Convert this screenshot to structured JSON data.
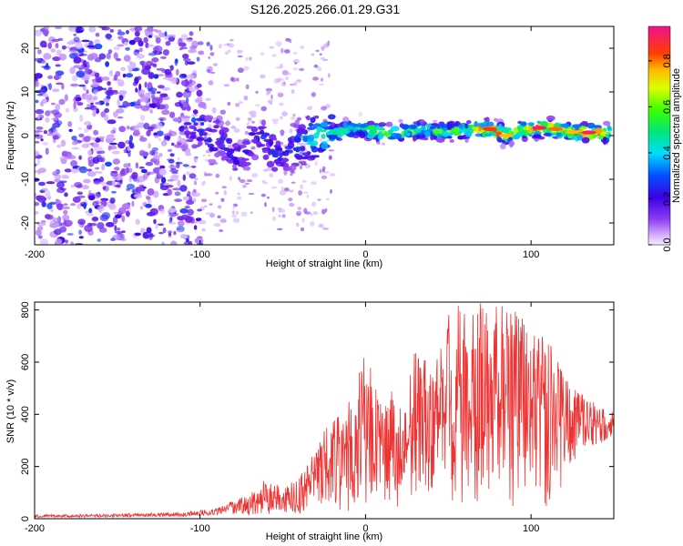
{
  "title": "S126.2025.266.01.29.G31",
  "chart_data": [
    {
      "type": "heatmap",
      "name": "spectrogram",
      "xlabel": "Height of straight line (km)",
      "ylabel": "Frequency (Hz)",
      "xlim": [
        -200,
        150
      ],
      "ylim": [
        -25,
        25
      ],
      "xticks": [
        -200,
        -100,
        0,
        100
      ],
      "yticks": [
        -20,
        -10,
        0,
        10,
        20
      ],
      "colorbar": {
        "label": "Normalized spectral amplitude",
        "range": [
          0,
          0.95
        ],
        "ticks": [
          0.0,
          0.2,
          0.4,
          0.6,
          0.8
        ],
        "tick_labels": [
          "0.0",
          "0.2",
          "0.4",
          "0.6",
          "0.8"
        ]
      },
      "ridge": {
        "x": [
          -105,
          -95,
          -85,
          -75,
          -65,
          -55,
          -45,
          -35,
          -25,
          -15,
          -5,
          5,
          15,
          25,
          35,
          45,
          55,
          65,
          75,
          85,
          95,
          105,
          115,
          125,
          135,
          145,
          150
        ],
        "frequency": [
          3,
          0,
          -2,
          -6,
          1,
          -4,
          -3,
          -1,
          0,
          1,
          2,
          1,
          0.5,
          1,
          1.2,
          0.8,
          1,
          1.2,
          1.5,
          0,
          1.5,
          1.8,
          1.5,
          0.8,
          0.7,
          0.5,
          0.3
        ],
        "amplitude": [
          0.3,
          0.25,
          0.25,
          0.2,
          0.25,
          0.25,
          0.3,
          0.4,
          0.5,
          0.55,
          0.55,
          0.65,
          0.6,
          0.6,
          0.55,
          0.6,
          0.6,
          0.7,
          0.9,
          0.8,
          0.7,
          0.95,
          0.85,
          0.8,
          0.95,
          0.7,
          0.7
        ]
      }
    },
    {
      "type": "line",
      "name": "snr",
      "xlabel": "Height of straight line (km)",
      "ylabel": "SNR (10 * v/v)",
      "xlim": [
        -200,
        150
      ],
      "ylim": [
        0,
        830
      ],
      "xticks": [
        -200,
        -100,
        0,
        100
      ],
      "yticks": [
        0,
        200,
        400,
        600,
        800
      ],
      "color": "#ee3333",
      "envelope": {
        "x": [
          -200,
          -150,
          -110,
          -90,
          -80,
          -70,
          -60,
          -50,
          -40,
          -30,
          -20,
          -10,
          0,
          10,
          20,
          30,
          40,
          50,
          60,
          70,
          80,
          90,
          100,
          110,
          120,
          130,
          140,
          150
        ],
        "max": [
          15,
          18,
          25,
          40,
          70,
          100,
          160,
          120,
          160,
          300,
          380,
          450,
          650,
          420,
          540,
          660,
          620,
          800,
          830,
          830,
          810,
          830,
          730,
          700,
          540,
          480,
          440,
          430
        ],
        "min": [
          2,
          2,
          3,
          5,
          8,
          10,
          15,
          20,
          20,
          40,
          30,
          30,
          60,
          80,
          40,
          100,
          90,
          40,
          60,
          40,
          80,
          40,
          120,
          30,
          140,
          250,
          280,
          300
        ]
      }
    }
  ]
}
